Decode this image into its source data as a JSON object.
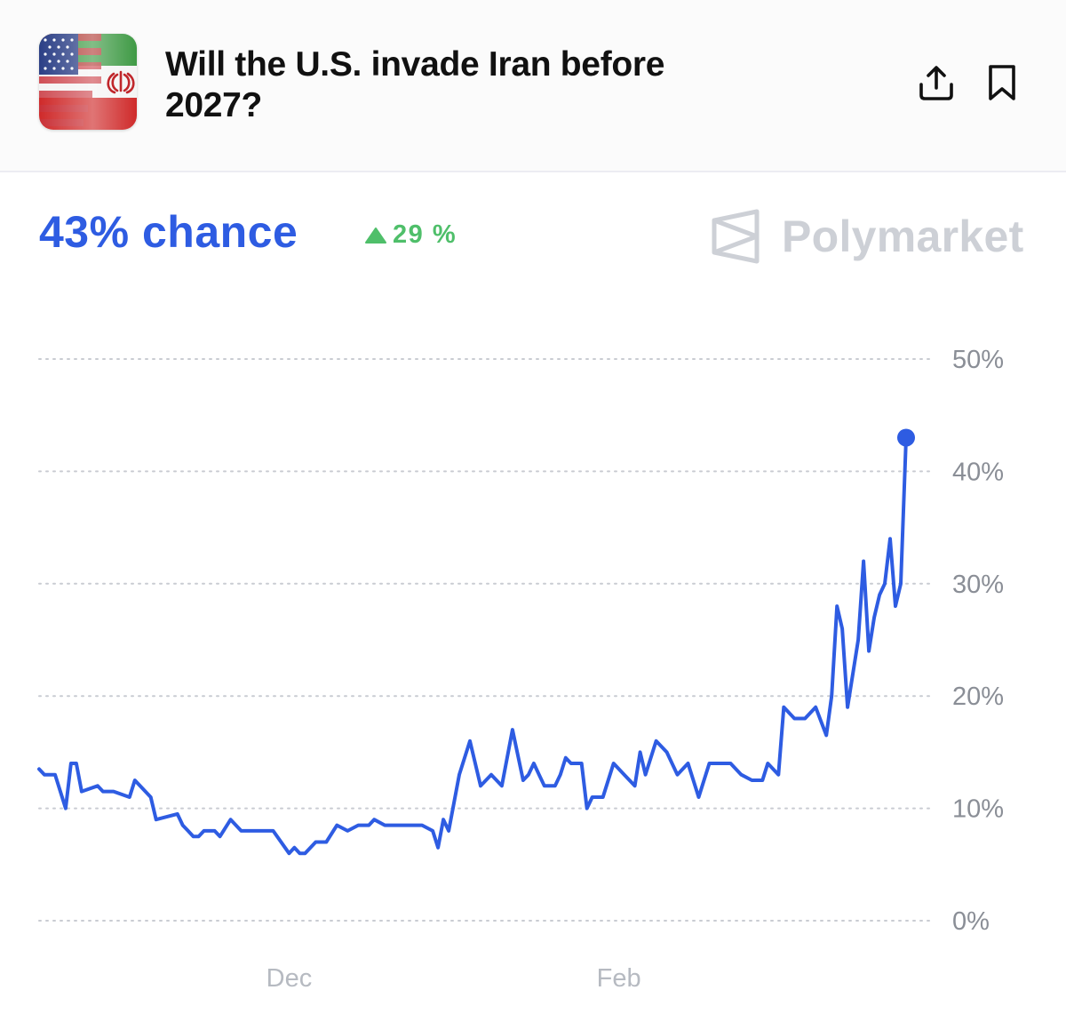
{
  "header": {
    "title": "Will the U.S. invade Iran before 2027?",
    "thumbnail_icon": "us-iran-flag-icon",
    "share_icon": "share-icon",
    "bookmark_icon": "bookmark-icon"
  },
  "summary": {
    "chance_text": "43% chance",
    "change_text": "29 %",
    "change_direction": "up",
    "brand": "Polymarket"
  },
  "colors": {
    "accent": "#2e5ce2",
    "positive": "#4fbf6a",
    "brand_muted": "#cdd0d6"
  },
  "chart_data": {
    "type": "line",
    "title": "",
    "xlabel": "",
    "ylabel": "",
    "ylim": [
      0,
      50
    ],
    "y_ticks": [
      0,
      10,
      20,
      30,
      40,
      50
    ],
    "y_tick_labels": [
      "0%",
      "10%",
      "20%",
      "30%",
      "40%",
      "50%"
    ],
    "x_tick_labels": [
      "Dec",
      "Feb"
    ],
    "x_tick_dates": [
      "2025-12-01",
      "2026-02-01"
    ],
    "grid": true,
    "grid_style": "dotted",
    "end_marker": true,
    "series": [
      {
        "x": [
          "2025-10-15",
          "2025-10-16",
          "2025-10-18",
          "2025-10-20",
          "2025-10-21",
          "2025-10-22",
          "2025-10-23",
          "2025-10-26",
          "2025-10-27",
          "2025-10-28",
          "2025-10-29",
          "2025-11-01",
          "2025-11-02",
          "2025-11-05",
          "2025-11-06",
          "2025-11-10",
          "2025-11-11",
          "2025-11-12",
          "2025-11-13",
          "2025-11-14",
          "2025-11-15",
          "2025-11-17",
          "2025-11-18",
          "2025-11-20",
          "2025-11-22",
          "2025-11-24",
          "2025-11-26",
          "2025-11-28",
          "2025-12-01",
          "2025-12-02",
          "2025-12-03",
          "2025-12-04",
          "2025-12-06",
          "2025-12-08",
          "2025-12-10",
          "2025-12-12",
          "2025-12-14",
          "2025-12-16",
          "2025-12-17",
          "2025-12-19",
          "2025-12-21",
          "2025-12-24",
          "2025-12-26",
          "2025-12-28",
          "2025-12-29",
          "2025-12-30",
          "2025-12-31",
          "2026-01-02",
          "2026-01-04",
          "2026-01-06",
          "2026-01-08",
          "2026-01-10",
          "2026-01-12",
          "2026-01-14",
          "2026-01-15",
          "2026-01-16",
          "2026-01-17",
          "2026-01-18",
          "2026-01-19",
          "2026-01-20",
          "2026-01-21",
          "2026-01-22",
          "2026-01-23",
          "2026-01-24",
          "2026-01-25",
          "2026-01-26",
          "2026-01-27",
          "2026-01-29",
          "2026-01-31",
          "2026-02-02",
          "2026-02-04",
          "2026-02-05",
          "2026-02-06",
          "2026-02-08",
          "2026-02-10",
          "2026-02-12",
          "2026-02-14",
          "2026-02-16",
          "2026-02-18",
          "2026-02-20",
          "2026-02-22",
          "2026-02-24",
          "2026-02-26",
          "2026-02-28",
          "2026-03-01",
          "2026-03-03",
          "2026-03-04",
          "2026-03-06",
          "2026-03-08",
          "2026-03-10",
          "2026-03-12",
          "2026-03-13",
          "2026-03-14",
          "2026-03-15",
          "2026-03-16",
          "2026-03-17",
          "2026-03-18",
          "2026-03-19",
          "2026-03-20",
          "2026-03-21",
          "2026-03-22",
          "2026-03-23",
          "2026-03-24",
          "2026-03-25",
          "2026-03-26",
          "2026-03-27"
        ],
        "y": [
          13.5,
          13,
          13,
          10,
          14,
          14,
          11.5,
          12,
          11.5,
          11.5,
          11.5,
          11,
          12.5,
          11,
          9,
          9.5,
          8.5,
          8,
          7.5,
          7.5,
          8,
          8,
          7.5,
          9,
          8,
          8,
          8,
          8,
          6,
          6.5,
          6,
          6,
          7,
          7,
          8.5,
          8,
          8.5,
          8.5,
          9,
          8.5,
          8.5,
          8.5,
          8.5,
          8,
          6.5,
          9,
          8,
          13,
          16,
          12,
          13,
          12,
          17,
          12.5,
          13,
          14,
          13,
          12,
          12,
          12,
          13,
          14.5,
          14,
          14,
          14,
          10,
          11,
          11,
          14,
          13,
          12,
          15,
          13,
          16,
          15,
          13,
          14,
          11,
          14,
          14,
          14,
          13,
          12.5,
          12.5,
          14,
          13,
          19,
          18,
          18,
          19,
          16.5,
          20,
          28,
          26,
          19,
          22,
          25,
          32,
          24,
          27,
          29,
          30,
          34,
          28,
          30,
          43
        ],
        "values_in_percent": true
      }
    ]
  }
}
